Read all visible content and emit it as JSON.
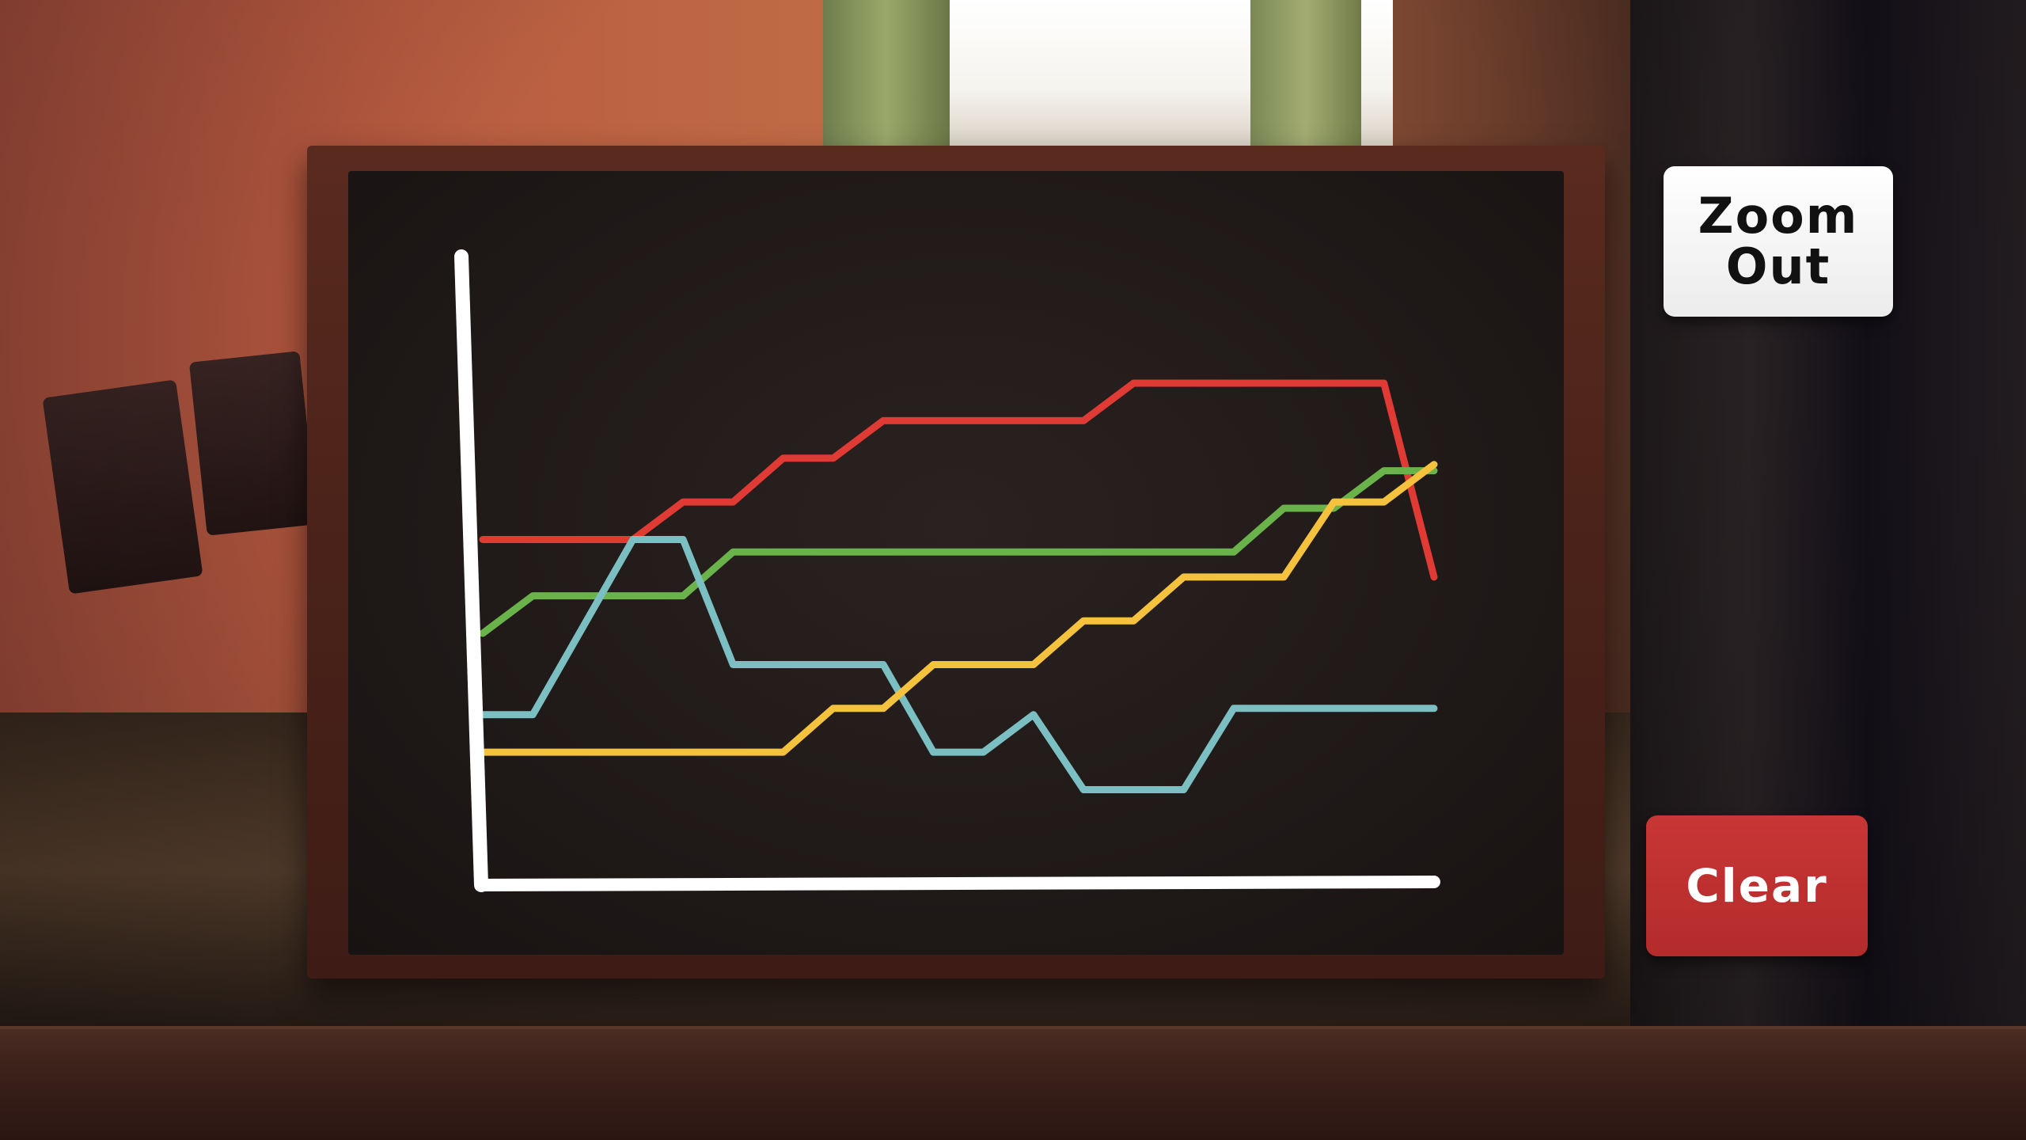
{
  "buttons": {
    "zoom_out_line1": "Zoom",
    "zoom_out_line2": "Out",
    "clear_label": "Clear"
  },
  "colors": {
    "red": "#e03a35",
    "green": "#6ab24a",
    "teal": "#7bbfc2",
    "yellow": "#f5c23d",
    "axis": "#ffffff",
    "clear_button": "#c0312f",
    "zoom_button": "#f4f4f4"
  },
  "chart_data": {
    "type": "line",
    "title": "",
    "xlabel": "",
    "ylabel": "",
    "xlim": [
      0,
      19
    ],
    "ylim": [
      0,
      10
    ],
    "grid": false,
    "series": [
      {
        "color": "red",
        "points": [
          [
            0,
            5.5
          ],
          [
            3,
            5.5
          ],
          [
            4,
            6.1
          ],
          [
            5,
            6.1
          ],
          [
            6,
            6.8
          ],
          [
            7,
            6.8
          ],
          [
            8,
            7.4
          ],
          [
            12,
            7.4
          ],
          [
            13,
            8.0
          ],
          [
            18,
            8.0
          ],
          [
            19,
            4.9
          ]
        ]
      },
      {
        "color": "green",
        "points": [
          [
            0,
            4.0
          ],
          [
            1,
            4.6
          ],
          [
            4,
            4.6
          ],
          [
            5,
            5.3
          ],
          [
            15,
            5.3
          ],
          [
            16,
            6.0
          ],
          [
            17,
            6.0
          ],
          [
            18,
            6.6
          ],
          [
            19,
            6.6
          ]
        ]
      },
      {
        "color": "teal",
        "points": [
          [
            0,
            2.7
          ],
          [
            1,
            2.7
          ],
          [
            3,
            5.5
          ],
          [
            4,
            5.5
          ],
          [
            5,
            3.5
          ],
          [
            8,
            3.5
          ],
          [
            9,
            2.1
          ],
          [
            10,
            2.1
          ],
          [
            11,
            2.7
          ],
          [
            12,
            1.5
          ],
          [
            14,
            1.5
          ],
          [
            15,
            2.8
          ],
          [
            19,
            2.8
          ]
        ]
      },
      {
        "color": "yellow",
        "points": [
          [
            0,
            2.1
          ],
          [
            6,
            2.1
          ],
          [
            7,
            2.8
          ],
          [
            8,
            2.8
          ],
          [
            9,
            3.5
          ],
          [
            11,
            3.5
          ],
          [
            12,
            4.2
          ],
          [
            13,
            4.2
          ],
          [
            14,
            4.9
          ],
          [
            16,
            4.9
          ],
          [
            17,
            6.1
          ],
          [
            18,
            6.1
          ],
          [
            19,
            6.7
          ]
        ]
      }
    ]
  }
}
